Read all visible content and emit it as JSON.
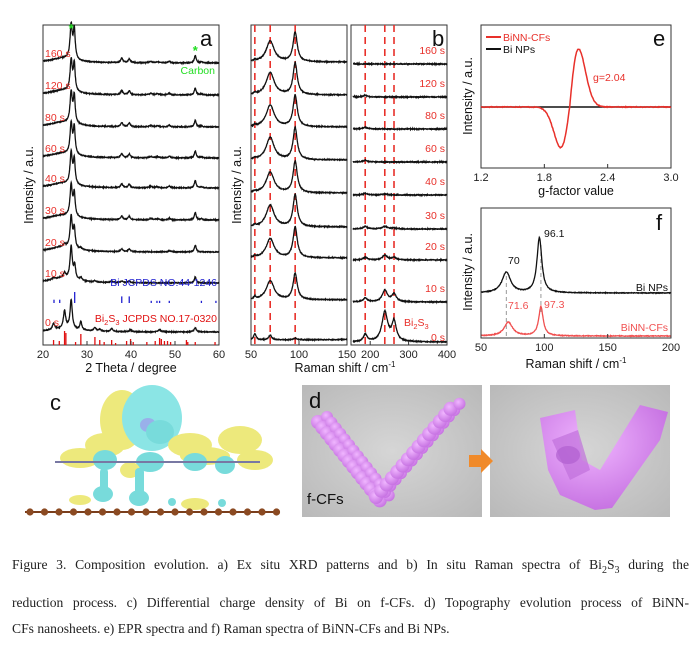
{
  "chart_data": [
    {
      "panel": "a",
      "type": "line",
      "xlabel": "2 Theta / degree",
      "ylabel": "Intensity / a.u.",
      "xlim": [
        20,
        60
      ],
      "xticks": [
        20,
        30,
        40,
        50,
        60
      ],
      "peak_format": "[position, relative intensity, half-width]",
      "series": [
        {
          "name": "160 s",
          "peaks": [
            [
              24.5,
              14,
              3.5
            ],
            [
              26.4,
              100,
              0.3
            ],
            [
              27.1,
              88,
              0.25
            ],
            [
              37.9,
              13,
              0.3
            ],
            [
              39.6,
              11,
              0.3
            ],
            [
              44.5,
              4,
              0.4
            ],
            [
              46,
              3,
              0.4
            ],
            [
              48.7,
              5,
              0.3
            ],
            [
              54.6,
              22,
              0.25
            ],
            [
              56,
              3,
              0.3
            ]
          ]
        },
        {
          "name": "120 s",
          "peaks": [
            [
              24.5,
              14,
              3.5
            ],
            [
              26.4,
              90,
              0.3
            ],
            [
              27.1,
              80,
              0.25
            ],
            [
              37.9,
              12,
              0.3
            ],
            [
              39.6,
              11,
              0.3
            ],
            [
              44.5,
              4,
              0.4
            ],
            [
              46,
              3,
              0.4
            ],
            [
              48.7,
              5,
              0.3
            ],
            [
              54.6,
              20,
              0.25
            ],
            [
              56,
              3,
              0.3
            ]
          ]
        },
        {
          "name": "80 s",
          "peaks": [
            [
              24.5,
              14,
              3.5
            ],
            [
              26.4,
              90,
              0.3
            ],
            [
              27.1,
              80,
              0.25
            ],
            [
              37.9,
              12,
              0.3
            ],
            [
              39.6,
              11,
              0.3
            ],
            [
              44.5,
              4,
              0.4
            ],
            [
              46,
              3,
              0.4
            ],
            [
              48.7,
              5,
              0.3
            ],
            [
              54.6,
              20,
              0.25
            ],
            [
              56,
              3,
              0.3
            ]
          ]
        },
        {
          "name": "60 s",
          "peaks": [
            [
              24.5,
              14,
              3.5
            ],
            [
              26.4,
              90,
              0.3
            ],
            [
              27.1,
              78,
              0.25
            ],
            [
              37.9,
              12,
              0.3
            ],
            [
              39.6,
              11,
              0.3
            ],
            [
              44.5,
              4,
              0.4
            ],
            [
              46,
              3,
              0.4
            ],
            [
              48.7,
              5,
              0.3
            ],
            [
              54.6,
              20,
              0.25
            ],
            [
              56,
              3,
              0.3
            ]
          ]
        },
        {
          "name": "40 s",
          "peaks": [
            [
              24.5,
              14,
              3.5
            ],
            [
              26.4,
              92,
              0.3
            ],
            [
              27.1,
              72,
              0.25
            ],
            [
              37.9,
              11,
              0.3
            ],
            [
              39.6,
              10,
              0.3
            ],
            [
              44.5,
              4,
              0.4
            ],
            [
              46,
              3,
              0.4
            ],
            [
              48.7,
              5,
              0.3
            ],
            [
              54.6,
              22,
              0.25
            ],
            [
              56,
              3,
              0.3
            ]
          ]
        },
        {
          "name": "30 s",
          "peaks": [
            [
              24.5,
              14,
              3.5
            ],
            [
              26.4,
              92,
              0.3
            ],
            [
              27.1,
              66,
              0.25
            ],
            [
              37.9,
              10,
              0.3
            ],
            [
              39.6,
              10,
              0.3
            ],
            [
              44.5,
              4,
              0.4
            ],
            [
              46,
              3,
              0.4
            ],
            [
              48.7,
              5,
              0.3
            ],
            [
              54.6,
              22,
              0.25
            ],
            [
              56,
              3,
              0.3
            ]
          ]
        },
        {
          "name": "20 s",
          "peaks": [
            [
              24.5,
              15,
              3.5
            ],
            [
              24.9,
              8,
              0.3
            ],
            [
              26.4,
              92,
              0.3
            ],
            [
              27.1,
              58,
              0.25
            ],
            [
              28.6,
              5,
              0.3
            ],
            [
              37.9,
              8,
              0.3
            ],
            [
              39.6,
              8,
              0.3
            ],
            [
              48.7,
              4,
              0.3
            ],
            [
              54.6,
              20,
              0.25
            ]
          ]
        },
        {
          "name": "10 s",
          "peaks": [
            [
              24.5,
              15,
              3.5
            ],
            [
              22.4,
              5,
              0.3
            ],
            [
              24.9,
              14,
              0.3
            ],
            [
              26.4,
              96,
              0.3
            ],
            [
              27.2,
              40,
              0.25
            ],
            [
              28.6,
              9,
              0.3
            ],
            [
              31.8,
              4,
              0.3
            ],
            [
              35.6,
              4,
              0.3
            ],
            [
              37.9,
              5,
              0.3
            ],
            [
              39.6,
              5,
              0.3
            ],
            [
              54.6,
              18,
              0.25
            ]
          ]
        },
        {
          "name": "0 s",
          "peaks": [
            [
              25,
              10,
              4
            ],
            [
              22.4,
              18,
              0.3
            ],
            [
              24.9,
              52,
              0.3
            ],
            [
              26.4,
              85,
              0.3
            ],
            [
              28.6,
              25,
              0.25
            ],
            [
              31.8,
              10,
              0.3
            ],
            [
              32.9,
              6,
              0.3
            ],
            [
              35.6,
              9,
              0.3
            ],
            [
              39.9,
              6,
              0.3
            ],
            [
              46.5,
              6,
              0.4
            ],
            [
              54.6,
              12,
              0.3
            ]
          ]
        }
      ],
      "markers": {
        "symbol": "*",
        "positions": [
          26.4,
          54.6
        ],
        "label": "Carbon"
      },
      "references": [
        {
          "label": "Bi JCPDS NO.44-1246",
          "color": "#2020d0",
          "sticks": [
            [
              22.5,
              3
            ],
            [
              23.8,
              3
            ],
            [
              27.2,
              10
            ],
            [
              37.9,
              6
            ],
            [
              39.6,
              6
            ],
            [
              44.6,
              2
            ],
            [
              45.9,
              2
            ],
            [
              46.5,
              2
            ],
            [
              48.7,
              2
            ],
            [
              56,
              2
            ],
            [
              59.3,
              2
            ]
          ]
        },
        {
          "label_parts": {
            "pre": "Bi",
            "sub1": "2",
            "mid": "S",
            "sub2": "3",
            "post": " JCPDS NO.17-0320"
          },
          "color": "#e01010",
          "sticks": [
            [
              22.4,
              5
            ],
            [
              23.7,
              4
            ],
            [
              24.9,
              14
            ],
            [
              25.2,
              12
            ],
            [
              27.4,
              3
            ],
            [
              28.6,
              11
            ],
            [
              31.8,
              8
            ],
            [
              32.9,
              5
            ],
            [
              33.9,
              3
            ],
            [
              35.6,
              5
            ],
            [
              36.5,
              2
            ],
            [
              39.0,
              4
            ],
            [
              39.9,
              6
            ],
            [
              40.5,
              3
            ],
            [
              43.6,
              3
            ],
            [
              45.5,
              4
            ],
            [
              46.5,
              7
            ],
            [
              46.9,
              6
            ],
            [
              47.6,
              4
            ],
            [
              48.3,
              4
            ],
            [
              49.0,
              3
            ],
            [
              52.6,
              5
            ],
            [
              52.9,
              3
            ],
            [
              54.6,
              3
            ],
            [
              59.1,
              3
            ]
          ]
        }
      ]
    },
    {
      "panel": "b",
      "type": "line",
      "xlabel": "Raman shift / cm",
      "xlabel_sup": "-1",
      "ylabel": "Intensity / a.u.",
      "xlim": [
        50,
        400
      ],
      "axis_break": 150,
      "xticks_left": [
        50,
        100,
        150
      ],
      "xticks_right": [
        200,
        300,
        400
      ],
      "reference_lines": [
        54,
        70,
        96,
        187,
        238,
        262
      ],
      "peak_format": "[position, relative intensity, half-width]",
      "series": [
        {
          "name": "160 s",
          "peaks": [
            [
              54,
              4,
              1.2
            ],
            [
              70,
              65,
              5
            ],
            [
              96,
              92,
              2.6
            ]
          ]
        },
        {
          "name": "120 s",
          "peaks": [
            [
              54,
              4,
              1.2
            ],
            [
              70,
              70,
              5
            ],
            [
              96,
              98,
              2.6
            ],
            [
              187,
              5,
              6
            ]
          ]
        },
        {
          "name": "80 s",
          "peaks": [
            [
              54,
              4,
              1.2
            ],
            [
              70,
              68,
              5
            ],
            [
              96,
              98,
              2.6
            ],
            [
              187,
              5,
              6
            ]
          ]
        },
        {
          "name": "60 s",
          "peaks": [
            [
              54,
              4,
              1.2
            ],
            [
              70,
              70,
              5
            ],
            [
              96,
              100,
              2.6
            ],
            [
              187,
              5,
              6
            ]
          ]
        },
        {
          "name": "40 s",
          "peaks": [
            [
              54,
              4,
              1.2
            ],
            [
              70,
              65,
              5
            ],
            [
              96,
              98,
              2.6
            ],
            [
              187,
              5,
              6
            ],
            [
              238,
              3,
              8
            ]
          ]
        },
        {
          "name": "30 s",
          "peaks": [
            [
              54,
              4,
              1.2
            ],
            [
              70,
              68,
              5
            ],
            [
              96,
              100,
              2.6
            ],
            [
              187,
              8,
              6
            ],
            [
              238,
              8,
              8
            ],
            [
              262,
              3,
              7
            ]
          ]
        },
        {
          "name": "20 s",
          "peaks": [
            [
              54,
              4,
              1.2
            ],
            [
              70,
              60,
              5
            ],
            [
              96,
              95,
              2.6
            ],
            [
              187,
              8,
              6
            ],
            [
              238,
              14,
              8
            ],
            [
              262,
              8,
              7
            ]
          ]
        },
        {
          "name": "10 s",
          "peaks": [
            [
              54,
              8,
              1.2
            ],
            [
              70,
              60,
              5
            ],
            [
              96,
              82,
              2.6
            ],
            [
              187,
              12,
              6
            ],
            [
              238,
              36,
              8
            ],
            [
              262,
              24,
              7
            ]
          ]
        },
        {
          "name": "0 s",
          "label_parts": {
            "pre": "Bi",
            "sub1": "2",
            "mid": "S",
            "sub2": "3"
          },
          "peaks": [
            [
              54,
              20,
              1.5
            ],
            [
              70,
              14,
              2
            ],
            [
              96,
              5,
              2
            ],
            [
              187,
              22,
              6
            ],
            [
              238,
              92,
              9
            ],
            [
              262,
              60,
              7
            ]
          ]
        }
      ]
    },
    {
      "panel": "e",
      "type": "line",
      "xlabel": "g-factor value",
      "ylabel": "Intensity / a.u.",
      "xlim": [
        1.2,
        3.0
      ],
      "xticks": [
        1.2,
        1.8,
        2.4,
        3.0
      ],
      "series": [
        {
          "name": "BiNN-CFs",
          "color": "#e8302a",
          "g_center": 2.04,
          "max_at": 2.13,
          "min_at": 1.96,
          "max_rel": 1.0,
          "min_rel": -0.7
        },
        {
          "name": "Bi NPs",
          "color": "#111111",
          "flat": true
        }
      ],
      "annotation": "g=2.04",
      "legend": "top-left"
    },
    {
      "panel": "f",
      "type": "line",
      "xlabel": "Raman shift / cm",
      "xlabel_sup": "-1",
      "ylabel": "Intensity / a.u.",
      "xlim": [
        50,
        200
      ],
      "xticks": [
        50,
        100,
        150,
        200
      ],
      "peak_format": "[position, relative intensity, half-width]",
      "series": [
        {
          "name": "Bi NPs",
          "color": "#111111",
          "peaks": [
            [
              70,
              38,
              4
            ],
            [
              96.1,
              100,
              2.3
            ]
          ],
          "peak_labels": [
            "70",
            "96.1"
          ]
        },
        {
          "name": "BiNN-CFs",
          "color": "#f05050",
          "peaks": [
            [
              71.6,
              25,
              4
            ],
            [
              97.3,
              53,
              2.1
            ]
          ],
          "peak_labels": [
            "71.6",
            "97.3"
          ]
        }
      ]
    }
  ],
  "panels": {
    "a": "a",
    "b": "b",
    "c": "c",
    "d": "d",
    "e": "e",
    "f": "f",
    "d_label": "f-CFs"
  },
  "colors": {
    "red": "#e8302a",
    "blue": "#2020d0",
    "green": "#22dd22",
    "cyan": "#5fe0e0",
    "yellow": "#e8e070",
    "purple": "#d47fe8",
    "arrow": "#f08a2a"
  },
  "caption": {
    "line1": {
      "pre": "Figure 3. Composition evolution. a) Ex situ XRD patterns and b) In situ Raman spectra of Bi",
      "sub1": "2",
      "mid": "S",
      "sub2": "3",
      "post": " during the"
    },
    "line2": "reduction process. c) Differential charge density of Bi on f-CFs. d) Topography evolution process of BiNN-",
    "line3": "CFs nanosheets. e) EPR spectra and f) Raman spectra of BiNN-CFs and Bi NPs."
  }
}
